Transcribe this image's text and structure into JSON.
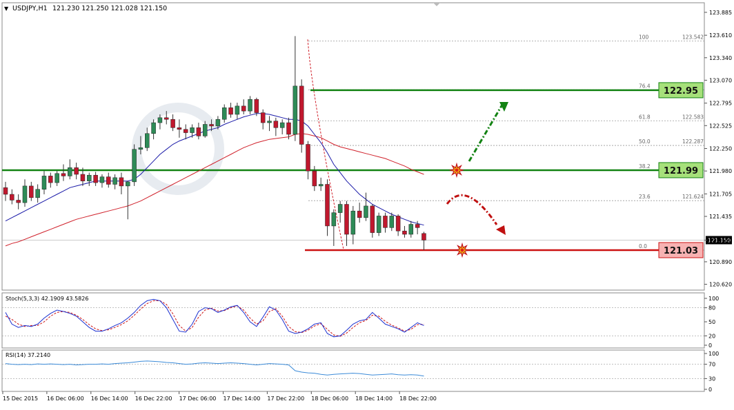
{
  "header": {
    "symbol": "USDJPY,H1",
    "ohlc": "121.230 121.250 121.028 121.150"
  },
  "colors": {
    "bull": "#2e8b57",
    "bear": "#c0182e",
    "wick": "#333333",
    "ma_fast": "#1a1aa8",
    "ma_slow": "#d0202a",
    "res_line": "#128212",
    "sup_line": "#cc1111",
    "fib": "#9a9a9a",
    "stoch_main": "#1a2fd0",
    "stoch_signal": "#cc1111",
    "rsi": "#3a8ad8",
    "level_green_fill": "#a6e07a",
    "level_red_fill": "#f7b2b2"
  },
  "price_axis": {
    "ticks": [
      "123.885",
      "123.610",
      "123.340",
      "123.070",
      "122.795",
      "122.525",
      "122.250",
      "121.980",
      "121.705",
      "121.435",
      "121.150",
      "120.890",
      "120.620"
    ],
    "current": "121.150"
  },
  "levels": {
    "resistance": "122.95",
    "middle": "121.99",
    "support": "121.03"
  },
  "fib_labels": [
    {
      "pct": "100",
      "price": "123.542"
    },
    {
      "pct": "76.4",
      "price": ""
    },
    {
      "pct": "61.8",
      "price": "122.583"
    },
    {
      "pct": "50.0",
      "price": "122.287"
    },
    {
      "pct": "38.2",
      "price": ""
    },
    {
      "pct": "23.6",
      "price": "121.624"
    },
    {
      "pct": "0.0",
      "price": ""
    }
  ],
  "time_axis": [
    "15 Dec 2015",
    "16 Dec 06:00",
    "16 Dec 14:00",
    "16 Dec 22:00",
    "17 Dec 06:00",
    "17 Dec 14:00",
    "17 Dec 22:00",
    "18 Dec 06:00",
    "18 Dec 14:00",
    "18 Dec 22:00"
  ],
  "stoch": {
    "label": "Stoch(5,3,3) 42.1909 43.5826",
    "ticks": [
      "100",
      "80",
      "50",
      "20",
      "0"
    ],
    "main": [
      70,
      45,
      38,
      42,
      40,
      45,
      58,
      68,
      75,
      72,
      68,
      62,
      50,
      38,
      30,
      30,
      35,
      42,
      48,
      58,
      70,
      85,
      95,
      98,
      95,
      80,
      55,
      30,
      28,
      45,
      72,
      80,
      78,
      70,
      75,
      82,
      85,
      70,
      50,
      40,
      60,
      82,
      75,
      55,
      30,
      25,
      28,
      35,
      45,
      48,
      25,
      18,
      20,
      32,
      45,
      52,
      55,
      70,
      58,
      45,
      40,
      35,
      28,
      38,
      48,
      42
    ],
    "signal": [
      62,
      55,
      45,
      40,
      42,
      42,
      50,
      62,
      70,
      72,
      70,
      64,
      55,
      44,
      35,
      31,
      33,
      38,
      44,
      52,
      64,
      77,
      89,
      95,
      95,
      87,
      67,
      42,
      30,
      38,
      60,
      75,
      79,
      73,
      74,
      80,
      84,
      75,
      58,
      45,
      52,
      72,
      78,
      62,
      40,
      29,
      27,
      32,
      41,
      46,
      34,
      22,
      19,
      26,
      38,
      48,
      53,
      64,
      62,
      51,
      43,
      37,
      30,
      34,
      44,
      45
    ]
  },
  "rsi": {
    "label": "RSI(14) 37.2140",
    "ticks": [
      "100",
      "70",
      "30",
      "0"
    ],
    "values": [
      72,
      70,
      69,
      70,
      69,
      71,
      70,
      71,
      70,
      69,
      70,
      68,
      69,
      70,
      70,
      71,
      70,
      72,
      73,
      74,
      76,
      78,
      79,
      78,
      77,
      75,
      74,
      72,
      70,
      71,
      73,
      74,
      73,
      72,
      73,
      74,
      73,
      72,
      70,
      68,
      70,
      72,
      71,
      70,
      68,
      52,
      48,
      46,
      45,
      42,
      40,
      42,
      43,
      44,
      45,
      44,
      42,
      40,
      41,
      42,
      43,
      41,
      40,
      41,
      40,
      37
    ]
  },
  "chart_data": {
    "type": "candlestick",
    "title": "USDJPY,H1",
    "ylim": [
      120.55,
      124.0
    ],
    "candles": [
      [
        121.78,
        121.85,
        121.62,
        121.7
      ],
      [
        121.7,
        121.76,
        121.58,
        121.63
      ],
      [
        121.63,
        121.7,
        121.52,
        121.6
      ],
      [
        121.6,
        121.88,
        121.55,
        121.8
      ],
      [
        121.8,
        121.85,
        121.62,
        121.66
      ],
      [
        121.66,
        121.82,
        121.6,
        121.76
      ],
      [
        121.76,
        121.98,
        121.7,
        121.92
      ],
      [
        121.92,
        121.96,
        121.78,
        121.84
      ],
      [
        121.84,
        121.98,
        121.8,
        121.95
      ],
      [
        121.95,
        122.06,
        121.86,
        121.92
      ],
      [
        121.92,
        122.12,
        121.88,
        122.02
      ],
      [
        122.02,
        122.08,
        121.88,
        121.94
      ],
      [
        121.94,
        122.02,
        121.8,
        121.86
      ],
      [
        121.86,
        121.96,
        121.8,
        121.93
      ],
      [
        121.93,
        121.97,
        121.8,
        121.84
      ],
      [
        121.84,
        121.94,
        121.78,
        121.91
      ],
      [
        121.91,
        121.96,
        121.78,
        121.82
      ],
      [
        121.82,
        121.94,
        121.76,
        121.9
      ],
      [
        121.9,
        121.96,
        121.7,
        121.8
      ],
      [
        121.8,
        121.86,
        121.4,
        121.85
      ],
      [
        121.85,
        122.3,
        121.8,
        122.24
      ],
      [
        122.24,
        122.4,
        122.18,
        122.26
      ],
      [
        122.26,
        122.5,
        122.22,
        122.43
      ],
      [
        122.43,
        122.6,
        122.36,
        122.56
      ],
      [
        122.56,
        122.66,
        122.48,
        122.62
      ],
      [
        122.62,
        122.7,
        122.54,
        122.6
      ],
      [
        122.6,
        122.66,
        122.46,
        122.5
      ],
      [
        122.5,
        122.6,
        122.38,
        122.48
      ],
      [
        122.48,
        122.54,
        122.36,
        122.44
      ],
      [
        122.44,
        122.54,
        122.38,
        122.5
      ],
      [
        122.5,
        122.56,
        122.36,
        122.4
      ],
      [
        122.4,
        122.58,
        122.38,
        122.54
      ],
      [
        122.54,
        122.6,
        122.46,
        122.52
      ],
      [
        122.52,
        122.64,
        122.48,
        122.6
      ],
      [
        122.6,
        122.78,
        122.56,
        122.74
      ],
      [
        122.74,
        122.8,
        122.62,
        122.66
      ],
      [
        122.66,
        122.8,
        122.6,
        122.76
      ],
      [
        122.76,
        122.84,
        122.66,
        122.7
      ],
      [
        122.7,
        122.88,
        122.66,
        122.84
      ],
      [
        122.84,
        122.86,
        122.64,
        122.68
      ],
      [
        122.68,
        122.72,
        122.48,
        122.56
      ],
      [
        122.56,
        122.64,
        122.46,
        122.58
      ],
      [
        122.58,
        122.62,
        122.4,
        122.5
      ],
      [
        122.5,
        122.6,
        122.42,
        122.56
      ],
      [
        122.56,
        122.62,
        122.36,
        122.42
      ],
      [
        122.42,
        123.6,
        122.34,
        123.0
      ],
      [
        123.0,
        123.08,
        122.2,
        122.3
      ],
      [
        122.3,
        122.34,
        121.88,
        121.98
      ],
      [
        121.98,
        122.04,
        121.74,
        121.8
      ],
      [
        121.8,
        121.9,
        121.74,
        121.82
      ],
      [
        121.82,
        121.88,
        121.2,
        121.32
      ],
      [
        121.32,
        121.52,
        121.08,
        121.48
      ],
      [
        121.48,
        121.62,
        121.36,
        121.58
      ],
      [
        121.58,
        121.62,
        121.08,
        121.22
      ],
      [
        121.22,
        121.56,
        121.1,
        121.5
      ],
      [
        121.5,
        121.6,
        121.36,
        121.42
      ],
      [
        121.42,
        121.72,
        121.38,
        121.56
      ],
      [
        121.56,
        121.58,
        121.18,
        121.24
      ],
      [
        121.24,
        121.48,
        121.2,
        121.44
      ],
      [
        121.44,
        121.48,
        121.24,
        121.3
      ],
      [
        121.3,
        121.48,
        121.26,
        121.44
      ],
      [
        121.44,
        121.46,
        121.2,
        121.26
      ],
      [
        121.26,
        121.32,
        121.18,
        121.22
      ],
      [
        121.22,
        121.38,
        121.18,
        121.34
      ],
      [
        121.34,
        121.38,
        121.22,
        121.3
      ],
      [
        121.23,
        121.25,
        121.03,
        121.15
      ]
    ],
    "ma_fast": [
      121.38,
      121.42,
      121.46,
      121.5,
      121.54,
      121.58,
      121.62,
      121.66,
      121.7,
      121.74,
      121.78,
      121.8,
      121.82,
      121.84,
      121.86,
      121.86,
      121.86,
      121.86,
      121.86,
      121.86,
      121.88,
      121.94,
      122.02,
      122.1,
      122.18,
      122.24,
      122.3,
      122.34,
      122.37,
      122.4,
      122.43,
      122.46,
      122.48,
      122.5,
      122.54,
      122.57,
      122.6,
      122.63,
      122.65,
      122.67,
      122.67,
      122.66,
      122.64,
      122.62,
      122.6,
      122.6,
      122.58,
      122.52,
      122.42,
      122.32,
      122.2,
      122.06,
      121.96,
      121.86,
      121.78,
      121.7,
      121.64,
      121.58,
      121.54,
      121.5,
      121.46,
      121.43,
      121.4,
      121.37,
      121.35,
      121.33
    ],
    "ma_slow": [
      121.08,
      121.11,
      121.13,
      121.16,
      121.19,
      121.22,
      121.25,
      121.28,
      121.31,
      121.34,
      121.37,
      121.4,
      121.42,
      121.44,
      121.46,
      121.48,
      121.5,
      121.52,
      121.54,
      121.56,
      121.59,
      121.62,
      121.66,
      121.7,
      121.74,
      121.78,
      121.82,
      121.86,
      121.9,
      121.94,
      121.98,
      122.02,
      122.06,
      122.1,
      122.14,
      122.18,
      122.22,
      122.26,
      122.29,
      122.32,
      122.34,
      122.36,
      122.37,
      122.38,
      122.39,
      122.42,
      122.43,
      122.42,
      122.4,
      122.38,
      122.34,
      122.3,
      122.27,
      122.25,
      122.23,
      122.21,
      122.19,
      122.17,
      122.15,
      122.13,
      122.1,
      122.07,
      122.04,
      122.0,
      121.97,
      121.94
    ]
  }
}
